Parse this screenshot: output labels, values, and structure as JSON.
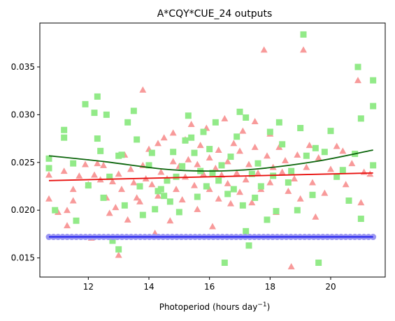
{
  "chart_data": {
    "type": "scatter",
    "title": "A*CQY*CUE_24 outputs",
    "xlabel": "Photoperiod (hours day",
    "xlabel_sup": "−1",
    "xlabel_end": ")",
    "ylabel": "",
    "xlim": [
      10.4,
      21.8
    ],
    "ylim": [
      0.013,
      0.0396
    ],
    "xticks": [
      12,
      14,
      16,
      18,
      20
    ],
    "yticks": [
      0.015,
      0.02,
      0.025,
      0.03,
      0.035
    ],
    "grid": false,
    "legend": "none",
    "colors": {
      "triangles": "#f89a9a",
      "squares": "#92ea88",
      "circles": "#9b96f2",
      "red_line": "#e8100e",
      "green_line": "#0a640a",
      "blue_line": "#1111ee"
    },
    "series": [
      {
        "marker": "triangle",
        "points": [
          [
            10.7,
            0.0237
          ],
          [
            10.7,
            0.0212
          ],
          [
            11.0,
            0.0198
          ],
          [
            11.2,
            0.0241
          ],
          [
            11.3,
            0.0184
          ],
          [
            11.3,
            0.02
          ],
          [
            11.5,
            0.0222
          ],
          [
            11.5,
            0.021
          ],
          [
            11.7,
            0.0236
          ],
          [
            11.9,
            0.0248
          ],
          [
            12.0,
            0.0227
          ],
          [
            12.1,
            0.0171
          ],
          [
            12.2,
            0.0237
          ],
          [
            12.3,
            0.0249
          ],
          [
            12.4,
            0.0232
          ],
          [
            12.5,
            0.0247
          ],
          [
            12.6,
            0.0213
          ],
          [
            12.7,
            0.0197
          ],
          [
            12.8,
            0.023
          ],
          [
            12.9,
            0.0203
          ],
          [
            13.0,
            0.0153
          ],
          [
            13.0,
            0.0238
          ],
          [
            13.1,
            0.0222
          ],
          [
            13.2,
            0.0258
          ],
          [
            13.3,
            0.019
          ],
          [
            13.4,
            0.0243
          ],
          [
            13.5,
            0.0229
          ],
          [
            13.6,
            0.0213
          ],
          [
            13.7,
            0.0209
          ],
          [
            13.8,
            0.0326
          ],
          [
            13.8,
            0.0247
          ],
          [
            13.9,
            0.0233
          ],
          [
            14.0,
            0.0264
          ],
          [
            14.1,
            0.0227
          ],
          [
            14.2,
            0.0176
          ],
          [
            14.3,
            0.027
          ],
          [
            14.3,
            0.0215
          ],
          [
            14.4,
            0.024
          ],
          [
            14.5,
            0.0276
          ],
          [
            14.6,
            0.0233
          ],
          [
            14.7,
            0.0189
          ],
          [
            14.8,
            0.0251
          ],
          [
            14.8,
            0.0281
          ],
          [
            14.9,
            0.0222
          ],
          [
            15.0,
            0.0246
          ],
          [
            15.1,
            0.0211
          ],
          [
            15.2,
            0.0274
          ],
          [
            15.2,
            0.0235
          ],
          [
            15.3,
            0.0253
          ],
          [
            15.4,
            0.029
          ],
          [
            15.5,
            0.0226
          ],
          [
            15.6,
            0.0248
          ],
          [
            15.6,
            0.0201
          ],
          [
            15.7,
            0.0268
          ],
          [
            15.8,
            0.0238
          ],
          [
            15.9,
            0.0286
          ],
          [
            16.0,
            0.0222
          ],
          [
            16.0,
            0.0255
          ],
          [
            16.1,
            0.0183
          ],
          [
            16.2,
            0.0244
          ],
          [
            16.3,
            0.0263
          ],
          [
            16.3,
            0.0212
          ],
          [
            16.4,
            0.0237
          ],
          [
            16.5,
            0.0296
          ],
          [
            16.6,
            0.0251
          ],
          [
            16.6,
            0.0228
          ],
          [
            16.7,
            0.0207
          ],
          [
            16.8,
            0.027
          ],
          [
            16.9,
            0.0239
          ],
          [
            17.0,
            0.0219
          ],
          [
            17.0,
            0.0262
          ],
          [
            17.1,
            0.0283
          ],
          [
            17.2,
            0.0232
          ],
          [
            17.3,
            0.0248
          ],
          [
            17.4,
            0.0208
          ],
          [
            17.5,
            0.0293
          ],
          [
            17.5,
            0.0266
          ],
          [
            17.6,
            0.0239
          ],
          [
            17.7,
            0.0222
          ],
          [
            17.8,
            0.0368
          ],
          [
            17.9,
            0.0257
          ],
          [
            18.0,
            0.028
          ],
          [
            18.0,
            0.0229
          ],
          [
            18.1,
            0.0245
          ],
          [
            18.2,
            0.0198
          ],
          [
            18.3,
            0.0266
          ],
          [
            18.4,
            0.024
          ],
          [
            18.5,
            0.0252
          ],
          [
            18.6,
            0.022
          ],
          [
            18.7,
            0.0141
          ],
          [
            18.8,
            0.0233
          ],
          [
            18.9,
            0.0258
          ],
          [
            19.0,
            0.0212
          ],
          [
            19.1,
            0.0368
          ],
          [
            19.2,
            0.0245
          ],
          [
            19.3,
            0.0268
          ],
          [
            19.4,
            0.0229
          ],
          [
            19.5,
            0.0193
          ],
          [
            19.6,
            0.0255
          ],
          [
            19.8,
            0.0218
          ],
          [
            20.0,
            0.0243
          ],
          [
            20.2,
            0.0267
          ],
          [
            20.4,
            0.0262
          ],
          [
            20.5,
            0.0227
          ],
          [
            20.7,
            0.0249
          ],
          [
            20.9,
            0.0336
          ],
          [
            21.0,
            0.0208
          ],
          [
            21.1,
            0.024
          ],
          [
            21.3,
            0.0238
          ]
        ]
      },
      {
        "marker": "square",
        "points": [
          [
            10.7,
            0.0254
          ],
          [
            10.7,
            0.0244
          ],
          [
            10.9,
            0.02
          ],
          [
            11.2,
            0.0284
          ],
          [
            11.2,
            0.0276
          ],
          [
            11.5,
            0.0249
          ],
          [
            11.6,
            0.0189
          ],
          [
            11.9,
            0.0311
          ],
          [
            12.0,
            0.0226
          ],
          [
            12.2,
            0.0302
          ],
          [
            12.3,
            0.0319
          ],
          [
            12.3,
            0.0275
          ],
          [
            12.4,
            0.0262
          ],
          [
            12.5,
            0.0213
          ],
          [
            12.6,
            0.03
          ],
          [
            12.7,
            0.0235
          ],
          [
            12.8,
            0.0168
          ],
          [
            13.0,
            0.0159
          ],
          [
            13.0,
            0.0257
          ],
          [
            13.1,
            0.0258
          ],
          [
            13.2,
            0.0205
          ],
          [
            13.3,
            0.0292
          ],
          [
            13.5,
            0.0304
          ],
          [
            13.6,
            0.0274
          ],
          [
            13.7,
            0.0225
          ],
          [
            13.8,
            0.0195
          ],
          [
            14.0,
            0.0247
          ],
          [
            14.1,
            0.026
          ],
          [
            14.2,
            0.0201
          ],
          [
            14.3,
            0.022
          ],
          [
            14.4,
            0.0222
          ],
          [
            14.5,
            0.0215
          ],
          [
            14.6,
            0.0231
          ],
          [
            14.7,
            0.0209
          ],
          [
            14.8,
            0.0261
          ],
          [
            14.9,
            0.0235
          ],
          [
            15.0,
            0.0198
          ],
          [
            15.1,
            0.0246
          ],
          [
            15.2,
            0.0273
          ],
          [
            15.3,
            0.0299
          ],
          [
            15.4,
            0.0276
          ],
          [
            15.5,
            0.026
          ],
          [
            15.6,
            0.0214
          ],
          [
            15.7,
            0.0241
          ],
          [
            15.8,
            0.0282
          ],
          [
            15.9,
            0.0225
          ],
          [
            16.0,
            0.0264
          ],
          [
            16.1,
            0.0239
          ],
          [
            16.2,
            0.0292
          ],
          [
            16.3,
            0.0231
          ],
          [
            16.4,
            0.0247
          ],
          [
            16.5,
            0.0145
          ],
          [
            16.6,
            0.0217
          ],
          [
            16.7,
            0.0256
          ],
          [
            16.8,
            0.0222
          ],
          [
            16.9,
            0.0277
          ],
          [
            17.0,
            0.0303
          ],
          [
            17.1,
            0.0205
          ],
          [
            17.2,
            0.0297
          ],
          [
            17.2,
            0.0178
          ],
          [
            17.3,
            0.0163
          ],
          [
            17.4,
            0.0238
          ],
          [
            17.5,
            0.0213
          ],
          [
            17.6,
            0.0249
          ],
          [
            17.7,
            0.0225
          ],
          [
            17.9,
            0.019
          ],
          [
            18.0,
            0.0282
          ],
          [
            18.1,
            0.0236
          ],
          [
            18.2,
            0.0199
          ],
          [
            18.3,
            0.0292
          ],
          [
            18.4,
            0.0269
          ],
          [
            18.6,
            0.0229
          ],
          [
            18.7,
            0.0241
          ],
          [
            18.9,
            0.02
          ],
          [
            19.0,
            0.0286
          ],
          [
            19.1,
            0.0384
          ],
          [
            19.2,
            0.0257
          ],
          [
            19.4,
            0.0216
          ],
          [
            19.5,
            0.0265
          ],
          [
            19.6,
            0.0145
          ],
          [
            19.8,
            0.0261
          ],
          [
            20.0,
            0.0283
          ],
          [
            20.2,
            0.0235
          ],
          [
            20.4,
            0.0242
          ],
          [
            20.6,
            0.021
          ],
          [
            20.8,
            0.0259
          ],
          [
            20.9,
            0.035
          ],
          [
            21.0,
            0.0296
          ],
          [
            21.0,
            0.0191
          ],
          [
            21.4,
            0.0336
          ],
          [
            21.4,
            0.0309
          ],
          [
            21.4,
            0.0247
          ]
        ]
      },
      {
        "marker": "circle",
        "x_range": [
          10.7,
          21.4
        ],
        "count": 72,
        "y": 0.0172
      }
    ],
    "trend_lines": [
      {
        "color_key": "green_line",
        "x": [
          10.7,
          12.5,
          14.5,
          16.0,
          17.5,
          19.5,
          21.4
        ],
        "y": [
          0.0257,
          0.0251,
          0.0243,
          0.0241,
          0.0243,
          0.0251,
          0.0263
        ]
      },
      {
        "color_key": "red_line",
        "x": [
          10.7,
          21.4
        ],
        "y": [
          0.0231,
          0.0239
        ]
      },
      {
        "color_key": "blue_line",
        "x": [
          10.7,
          21.4
        ],
        "y": [
          0.0172,
          0.0172
        ]
      }
    ]
  }
}
